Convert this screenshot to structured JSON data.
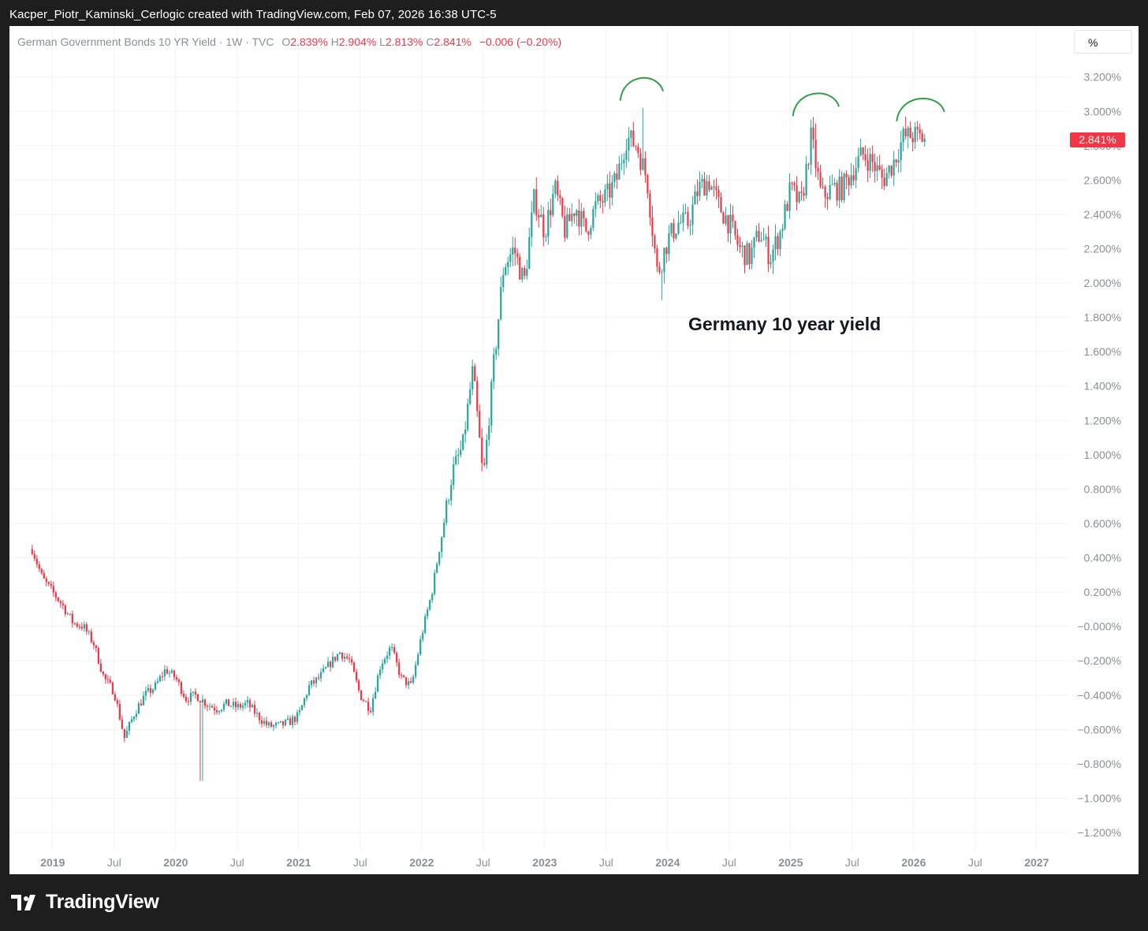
{
  "caption": "Kacper_Piotr_Kaminski_Cerlogic created with TradingView.com, Feb 07, 2026 16:38 UTC-5",
  "legend": {
    "symbol": "German Government Bonds 10 YR Yield · 1W · TVC",
    "open_label": "O",
    "open": "2.839%",
    "high_label": "H",
    "high": "2.904%",
    "low_label": "L",
    "low": "2.813%",
    "close_label": "C",
    "close": "2.841%",
    "change": "−0.006 (−0.20%)"
  },
  "scale_mode": "%",
  "last_price_tag": "2.841%",
  "annotation": "Germany 10 year yield",
  "brand": {
    "name": "TradingView"
  },
  "colors": {
    "up": "#26a69a",
    "down": "#f23645",
    "annotation_arcs": "#2ea043",
    "grid": "#f3f3f3"
  },
  "chart_data": {
    "type": "candlestick",
    "interval": "1W",
    "y_unit": "%",
    "ylim": [
      -1.3,
      3.3
    ],
    "y_ticks": [
      "3.200%",
      "3.000%",
      "2.800%",
      "2.600%",
      "2.400%",
      "2.200%",
      "2.000%",
      "1.800%",
      "1.600%",
      "1.400%",
      "1.200%",
      "1.000%",
      "0.800%",
      "0.600%",
      "0.400%",
      "0.200%",
      "−0.000%",
      "−0.200%",
      "−0.400%",
      "−0.600%",
      "−0.800%",
      "−1.000%",
      "−1.200%"
    ],
    "x_ticks": [
      {
        "label": "2019",
        "date": "2019-01",
        "kind": "year"
      },
      {
        "label": "Jul",
        "date": "2019-07",
        "kind": "month"
      },
      {
        "label": "2020",
        "date": "2020-01",
        "kind": "year"
      },
      {
        "label": "Jul",
        "date": "2020-07",
        "kind": "month"
      },
      {
        "label": "2021",
        "date": "2021-01",
        "kind": "year"
      },
      {
        "label": "Jul",
        "date": "2021-07",
        "kind": "month"
      },
      {
        "label": "2022",
        "date": "2022-01",
        "kind": "year"
      },
      {
        "label": "Jul",
        "date": "2022-07",
        "kind": "month"
      },
      {
        "label": "2023",
        "date": "2023-01",
        "kind": "year"
      },
      {
        "label": "Jul",
        "date": "2023-07",
        "kind": "month"
      },
      {
        "label": "2024",
        "date": "2024-01",
        "kind": "year"
      },
      {
        "label": "Jul",
        "date": "2024-07",
        "kind": "month"
      },
      {
        "label": "2025",
        "date": "2025-01",
        "kind": "year"
      },
      {
        "label": "Jul",
        "date": "2025-07",
        "kind": "month"
      },
      {
        "label": "2026",
        "date": "2026-01",
        "kind": "year"
      },
      {
        "label": "Jul",
        "date": "2026-07",
        "kind": "month"
      },
      {
        "label": "2027",
        "date": "2027-01",
        "kind": "year"
      }
    ],
    "x_range": [
      "2018-11",
      "2027-04"
    ],
    "price_path": [
      [
        "2018-11",
        0.45
      ],
      [
        "2018-12",
        0.28
      ],
      [
        "2019-01",
        0.2
      ],
      [
        "2019-02",
        0.12
      ],
      [
        "2019-03",
        0.02
      ],
      [
        "2019-04",
        0.0
      ],
      [
        "2019-05",
        -0.1
      ],
      [
        "2019-06",
        -0.3
      ],
      [
        "2019-07",
        -0.38
      ],
      [
        "2019-08",
        -0.65
      ],
      [
        "2019-09",
        -0.5
      ],
      [
        "2019-10",
        -0.4
      ],
      [
        "2019-11",
        -0.35
      ],
      [
        "2019-12",
        -0.25
      ],
      [
        "2020-01",
        -0.3
      ],
      [
        "2020-02",
        -0.42
      ],
      [
        "2020-03",
        -0.4
      ],
      [
        "2020-04",
        -0.45
      ],
      [
        "2020-05",
        -0.48
      ],
      [
        "2020-06",
        -0.45
      ],
      [
        "2020-07",
        -0.47
      ],
      [
        "2020-08",
        -0.45
      ],
      [
        "2020-09",
        -0.52
      ],
      [
        "2020-10",
        -0.58
      ],
      [
        "2020-11",
        -0.58
      ],
      [
        "2020-12",
        -0.56
      ],
      [
        "2021-01",
        -0.52
      ],
      [
        "2021-02",
        -0.35
      ],
      [
        "2021-03",
        -0.3
      ],
      [
        "2021-04",
        -0.22
      ],
      [
        "2021-05",
        -0.15
      ],
      [
        "2021-06",
        -0.2
      ],
      [
        "2021-07",
        -0.4
      ],
      [
        "2021-08",
        -0.48
      ],
      [
        "2021-09",
        -0.22
      ],
      [
        "2021-10",
        -0.12
      ],
      [
        "2021-11",
        -0.3
      ],
      [
        "2021-12",
        -0.35
      ],
      [
        "2022-01",
        -0.05
      ],
      [
        "2022-02",
        0.2
      ],
      [
        "2022-03",
        0.55
      ],
      [
        "2022-04",
        0.9
      ],
      [
        "2022-05",
        1.05
      ],
      [
        "2022-06",
        1.5
      ],
      [
        "2022-07",
        0.85
      ],
      [
        "2022-08",
        1.5
      ],
      [
        "2022-09",
        2.1
      ],
      [
        "2022-10",
        2.2
      ],
      [
        "2022-11",
        2.0
      ],
      [
        "2022-12",
        2.5
      ],
      [
        "2023-01",
        2.3
      ],
      [
        "2023-02",
        2.55
      ],
      [
        "2023-03",
        2.3
      ],
      [
        "2023-04",
        2.45
      ],
      [
        "2023-05",
        2.3
      ],
      [
        "2023-06",
        2.45
      ],
      [
        "2023-07",
        2.5
      ],
      [
        "2023-08",
        2.6
      ],
      [
        "2023-09",
        2.85
      ],
      [
        "2023-10",
        2.8
      ],
      [
        "2023-11",
        2.6
      ],
      [
        "2023-12",
        2.05
      ],
      [
        "2024-01",
        2.25
      ],
      [
        "2024-02",
        2.35
      ],
      [
        "2024-03",
        2.35
      ],
      [
        "2024-04",
        2.55
      ],
      [
        "2024-05",
        2.6
      ],
      [
        "2024-06",
        2.45
      ],
      [
        "2024-07",
        2.35
      ],
      [
        "2024-08",
        2.2
      ],
      [
        "2024-09",
        2.15
      ],
      [
        "2024-10",
        2.3
      ],
      [
        "2024-11",
        2.15
      ],
      [
        "2024-12",
        2.3
      ],
      [
        "2025-01",
        2.55
      ],
      [
        "2025-02",
        2.45
      ],
      [
        "2025-03",
        2.85
      ],
      [
        "2025-04",
        2.5
      ],
      [
        "2025-05",
        2.55
      ],
      [
        "2025-06",
        2.55
      ],
      [
        "2025-07",
        2.65
      ],
      [
        "2025-08",
        2.75
      ],
      [
        "2025-09",
        2.7
      ],
      [
        "2025-10",
        2.6
      ],
      [
        "2025-11",
        2.7
      ],
      [
        "2025-12",
        2.85
      ],
      [
        "2026-01",
        2.86
      ],
      [
        "2026-02",
        2.841
      ]
    ],
    "notable_extremes": [
      {
        "date": "2020-03",
        "value": -0.9
      },
      {
        "date": "2023-10",
        "value": 3.02
      },
      {
        "date": "2023-12",
        "value": 1.9
      },
      {
        "date": "2025-03",
        "value": 2.93
      }
    ],
    "annotations": [
      {
        "type": "arc",
        "near": "2023-10 peak",
        "color": "green"
      },
      {
        "type": "arc",
        "near": "2025-03 peak",
        "color": "green"
      },
      {
        "type": "arc",
        "near": "2026-01 high",
        "color": "green"
      },
      {
        "type": "text",
        "text": "Germany 10 year yield",
        "at": [
          "2024-05",
          1.75
        ]
      }
    ]
  }
}
